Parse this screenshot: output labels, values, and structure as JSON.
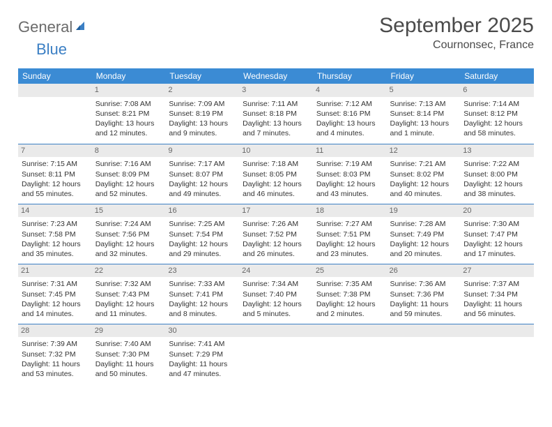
{
  "logo": {
    "text1": "General",
    "text2": "Blue"
  },
  "title": "September 2025",
  "location": "Cournonsec, France",
  "colors": {
    "header_bg": "#3b8bd4",
    "header_fg": "#ffffff",
    "rule": "#3b7fc4",
    "daynum_bg": "#eaeaea",
    "daynum_fg": "#666666",
    "text": "#333333",
    "logo_gray": "#6b6b6b",
    "logo_blue": "#3b7fc4"
  },
  "typography": {
    "title_fontsize": 30,
    "location_fontsize": 16,
    "weekday_fontsize": 12,
    "daynum_fontsize": 11,
    "body_fontsize": 10.5
  },
  "weekdays": [
    "Sunday",
    "Monday",
    "Tuesday",
    "Wednesday",
    "Thursday",
    "Friday",
    "Saturday"
  ],
  "grid": [
    [
      {
        "day": "",
        "lines": []
      },
      {
        "day": "1",
        "lines": [
          "Sunrise: 7:08 AM",
          "Sunset: 8:21 PM",
          "Daylight: 13 hours and 12 minutes."
        ]
      },
      {
        "day": "2",
        "lines": [
          "Sunrise: 7:09 AM",
          "Sunset: 8:19 PM",
          "Daylight: 13 hours and 9 minutes."
        ]
      },
      {
        "day": "3",
        "lines": [
          "Sunrise: 7:11 AM",
          "Sunset: 8:18 PM",
          "Daylight: 13 hours and 7 minutes."
        ]
      },
      {
        "day": "4",
        "lines": [
          "Sunrise: 7:12 AM",
          "Sunset: 8:16 PM",
          "Daylight: 13 hours and 4 minutes."
        ]
      },
      {
        "day": "5",
        "lines": [
          "Sunrise: 7:13 AM",
          "Sunset: 8:14 PM",
          "Daylight: 13 hours and 1 minute."
        ]
      },
      {
        "day": "6",
        "lines": [
          "Sunrise: 7:14 AM",
          "Sunset: 8:12 PM",
          "Daylight: 12 hours and 58 minutes."
        ]
      }
    ],
    [
      {
        "day": "7",
        "lines": [
          "Sunrise: 7:15 AM",
          "Sunset: 8:11 PM",
          "Daylight: 12 hours and 55 minutes."
        ]
      },
      {
        "day": "8",
        "lines": [
          "Sunrise: 7:16 AM",
          "Sunset: 8:09 PM",
          "Daylight: 12 hours and 52 minutes."
        ]
      },
      {
        "day": "9",
        "lines": [
          "Sunrise: 7:17 AM",
          "Sunset: 8:07 PM",
          "Daylight: 12 hours and 49 minutes."
        ]
      },
      {
        "day": "10",
        "lines": [
          "Sunrise: 7:18 AM",
          "Sunset: 8:05 PM",
          "Daylight: 12 hours and 46 minutes."
        ]
      },
      {
        "day": "11",
        "lines": [
          "Sunrise: 7:19 AM",
          "Sunset: 8:03 PM",
          "Daylight: 12 hours and 43 minutes."
        ]
      },
      {
        "day": "12",
        "lines": [
          "Sunrise: 7:21 AM",
          "Sunset: 8:02 PM",
          "Daylight: 12 hours and 40 minutes."
        ]
      },
      {
        "day": "13",
        "lines": [
          "Sunrise: 7:22 AM",
          "Sunset: 8:00 PM",
          "Daylight: 12 hours and 38 minutes."
        ]
      }
    ],
    [
      {
        "day": "14",
        "lines": [
          "Sunrise: 7:23 AM",
          "Sunset: 7:58 PM",
          "Daylight: 12 hours and 35 minutes."
        ]
      },
      {
        "day": "15",
        "lines": [
          "Sunrise: 7:24 AM",
          "Sunset: 7:56 PM",
          "Daylight: 12 hours and 32 minutes."
        ]
      },
      {
        "day": "16",
        "lines": [
          "Sunrise: 7:25 AM",
          "Sunset: 7:54 PM",
          "Daylight: 12 hours and 29 minutes."
        ]
      },
      {
        "day": "17",
        "lines": [
          "Sunrise: 7:26 AM",
          "Sunset: 7:52 PM",
          "Daylight: 12 hours and 26 minutes."
        ]
      },
      {
        "day": "18",
        "lines": [
          "Sunrise: 7:27 AM",
          "Sunset: 7:51 PM",
          "Daylight: 12 hours and 23 minutes."
        ]
      },
      {
        "day": "19",
        "lines": [
          "Sunrise: 7:28 AM",
          "Sunset: 7:49 PM",
          "Daylight: 12 hours and 20 minutes."
        ]
      },
      {
        "day": "20",
        "lines": [
          "Sunrise: 7:30 AM",
          "Sunset: 7:47 PM",
          "Daylight: 12 hours and 17 minutes."
        ]
      }
    ],
    [
      {
        "day": "21",
        "lines": [
          "Sunrise: 7:31 AM",
          "Sunset: 7:45 PM",
          "Daylight: 12 hours and 14 minutes."
        ]
      },
      {
        "day": "22",
        "lines": [
          "Sunrise: 7:32 AM",
          "Sunset: 7:43 PM",
          "Daylight: 12 hours and 11 minutes."
        ]
      },
      {
        "day": "23",
        "lines": [
          "Sunrise: 7:33 AM",
          "Sunset: 7:41 PM",
          "Daylight: 12 hours and 8 minutes."
        ]
      },
      {
        "day": "24",
        "lines": [
          "Sunrise: 7:34 AM",
          "Sunset: 7:40 PM",
          "Daylight: 12 hours and 5 minutes."
        ]
      },
      {
        "day": "25",
        "lines": [
          "Sunrise: 7:35 AM",
          "Sunset: 7:38 PM",
          "Daylight: 12 hours and 2 minutes."
        ]
      },
      {
        "day": "26",
        "lines": [
          "Sunrise: 7:36 AM",
          "Sunset: 7:36 PM",
          "Daylight: 11 hours and 59 minutes."
        ]
      },
      {
        "day": "27",
        "lines": [
          "Sunrise: 7:37 AM",
          "Sunset: 7:34 PM",
          "Daylight: 11 hours and 56 minutes."
        ]
      }
    ],
    [
      {
        "day": "28",
        "lines": [
          "Sunrise: 7:39 AM",
          "Sunset: 7:32 PM",
          "Daylight: 11 hours and 53 minutes."
        ]
      },
      {
        "day": "29",
        "lines": [
          "Sunrise: 7:40 AM",
          "Sunset: 7:30 PM",
          "Daylight: 11 hours and 50 minutes."
        ]
      },
      {
        "day": "30",
        "lines": [
          "Sunrise: 7:41 AM",
          "Sunset: 7:29 PM",
          "Daylight: 11 hours and 47 minutes."
        ]
      },
      {
        "day": "",
        "lines": []
      },
      {
        "day": "",
        "lines": []
      },
      {
        "day": "",
        "lines": []
      },
      {
        "day": "",
        "lines": []
      }
    ]
  ]
}
